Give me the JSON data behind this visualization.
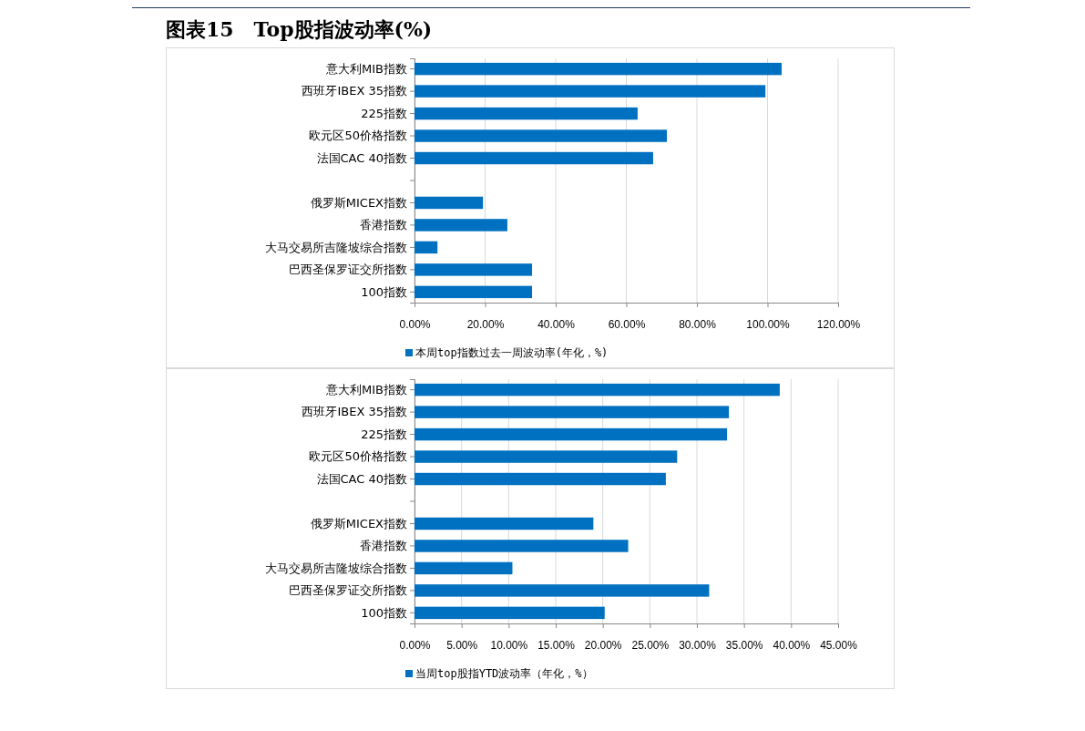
{
  "chart_data": [
    {
      "type": "bar",
      "orientation": "horizontal",
      "title": "图表15　Top股指波动率(%)",
      "categories": [
        "意大利MIB指数",
        "西班牙IBEX 35指数",
        "225指数",
        "欧元区50价格指数",
        "法国CAC 40指数",
        null,
        "俄罗斯MICEX指数",
        "香港指数",
        "大马交易所吉隆坡综合指数",
        "巴西圣保罗证交所指数",
        "100指数"
      ],
      "series": [
        {
          "name": "本周top指数过去一周波动率(年化，%)",
          "color": "#0070c0",
          "values": [
            104,
            99.4,
            63.2,
            71.5,
            67.6,
            null,
            19.4,
            26.3,
            6.5,
            33.3,
            33.3
          ]
        }
      ],
      "xlim": [
        0,
        120
      ],
      "xticks": [
        {
          "value": 0,
          "label": "0.00%"
        },
        {
          "value": 20,
          "label": "20.00%"
        },
        {
          "value": 40,
          "label": "40.00%"
        },
        {
          "value": 60,
          "label": "60.00%"
        },
        {
          "value": 80,
          "label": "80.00%"
        },
        {
          "value": 100,
          "label": "100.00%"
        },
        {
          "value": 120,
          "label": "120.00%"
        }
      ],
      "grid": "x",
      "legend": "bottom"
    },
    {
      "type": "bar",
      "orientation": "horizontal",
      "categories": [
        "意大利MIB指数",
        "西班牙IBEX 35指数",
        "225指数",
        "欧元区50价格指数",
        "法国CAC 40指数",
        null,
        "俄罗斯MICEX指数",
        "香港指数",
        "大马交易所吉隆坡综合指数",
        "巴西圣保罗证交所指数",
        "100指数"
      ],
      "series": [
        {
          "name": "当周top股指YTD波动率（年化，%）",
          "color": "#0070c0",
          "values": [
            38.8,
            33.4,
            33.2,
            27.9,
            26.7,
            null,
            19.0,
            22.7,
            10.4,
            31.3,
            20.2
          ]
        }
      ],
      "xlim": [
        0,
        45
      ],
      "xticks": [
        {
          "value": 0,
          "label": "0.00%"
        },
        {
          "value": 5,
          "label": "5.00%"
        },
        {
          "value": 10,
          "label": "10.00%"
        },
        {
          "value": 15,
          "label": "15.00%"
        },
        {
          "value": 20,
          "label": "20.00%"
        },
        {
          "value": 25,
          "label": "25.00%"
        },
        {
          "value": 30,
          "label": "30.00%"
        },
        {
          "value": 35,
          "label": "35.00%"
        },
        {
          "value": 40,
          "label": "40.00%"
        },
        {
          "value": 45,
          "label": "45.00%"
        }
      ],
      "grid": "x",
      "legend": "bottom"
    }
  ]
}
